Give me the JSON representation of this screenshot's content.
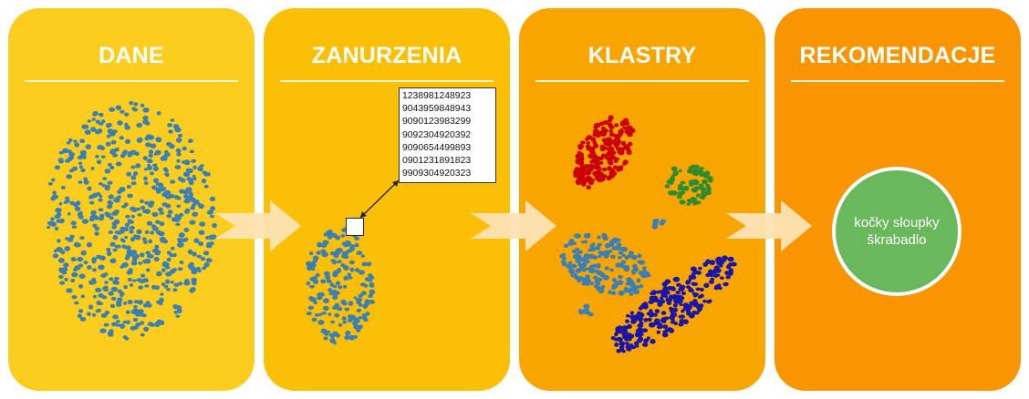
{
  "stages": [
    {
      "title": "DANE"
    },
    {
      "title": "ZANURZENIA"
    },
    {
      "title": "KLASTRY"
    },
    {
      "title": "REKOMENDACJE"
    }
  ],
  "embedding_values": [
    "1238981248923",
    "9043959848943",
    "9090123983299",
    "9092304920392",
    "9090654499893",
    "0901231891823",
    "9909304920323"
  ],
  "recommendation": {
    "lines": [
      "kočky sloupky",
      "škrabadlo"
    ]
  },
  "colors": {
    "panel_1": "#fbcd1f",
    "panel_2": "#fbbf06",
    "panel_3": "#f9a500",
    "panel_4": "#f99500",
    "arrow": "#fde3b4",
    "data_points": "#3a7fb5",
    "cluster_red": "#cc0000",
    "cluster_green": "#2e8b2e",
    "cluster_blue_light": "#3a7fb5",
    "cluster_blue_dark": "#1a14a8",
    "recommendation_circle": "#6ab85c"
  },
  "clusters": [
    {
      "color": "red"
    },
    {
      "color": "green"
    },
    {
      "color": "light-blue"
    },
    {
      "color": "dark-blue"
    }
  ]
}
